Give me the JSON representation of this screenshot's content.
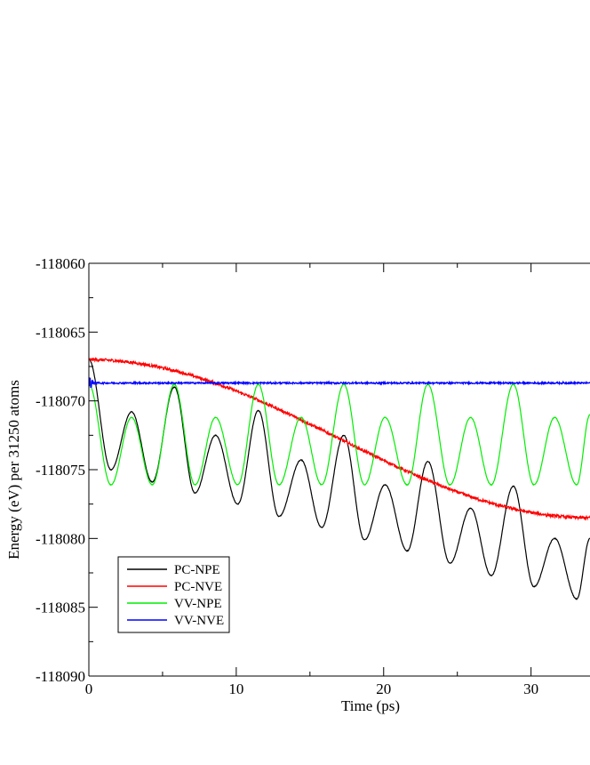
{
  "chart_data": {
    "type": "line",
    "title": "",
    "xlabel": "Time (ps)",
    "ylabel": "Energy (eV) per 31250 atoms",
    "xlim": [
      0,
      34
    ],
    "ylim": [
      -118090,
      -118060
    ],
    "x_major_ticks": [
      0,
      10,
      20,
      30
    ],
    "x_tick_labels": [
      "0",
      "10",
      "20",
      "30"
    ],
    "y_major_ticks": [
      -118090,
      -118085,
      -118080,
      -118075,
      -118070,
      -118065,
      -118060
    ],
    "y_tick_labels": [
      "-118090",
      "-118085",
      "-118080",
      "-118075",
      "-118070",
      "-118065",
      "-118060"
    ],
    "grid": false,
    "legend_position": "bottom-left",
    "series": [
      {
        "name": "PC-NPE",
        "color": "#000000",
        "model": "damped-oscillation",
        "x": [
          0,
          1.5,
          2.9,
          4.3,
          5.8,
          7.2,
          8.6,
          10.1,
          11.5,
          12.9,
          14.4,
          15.8,
          17.3,
          18.7,
          20.1,
          21.6,
          23.0,
          24.5,
          25.9,
          27.3,
          28.8,
          30.2,
          31.6,
          33.1,
          34
        ],
        "y": [
          -118067.0,
          -118075.0,
          -118070.8,
          -118075.9,
          -118069.0,
          -118076.7,
          -118072.5,
          -118077.5,
          -118070.7,
          -118078.4,
          -118074.3,
          -118079.2,
          -118072.5,
          -118080.1,
          -118076.1,
          -118080.9,
          -118074.4,
          -118081.8,
          -118077.8,
          -118082.7,
          -118076.2,
          -118083.5,
          -118080.0,
          -118084.4,
          -118080.0
        ]
      },
      {
        "name": "PC-NVE",
        "color": "#ff0000",
        "model": "linear-with-noise",
        "x": [
          0,
          34
        ],
        "y": [
          -118067.0,
          -118078.5
        ]
      },
      {
        "name": "VV-NPE",
        "color": "#00ee00",
        "model": "oscillation",
        "x": [
          0,
          1.5,
          2.9,
          4.3,
          5.8,
          7.2,
          8.6,
          10.1,
          11.5,
          12.9,
          14.4,
          15.8,
          17.3,
          18.7,
          20.1,
          21.6,
          23.0,
          24.5,
          25.9,
          27.3,
          28.8,
          30.2,
          31.6,
          33.1,
          34
        ],
        "y": [
          -118068.8,
          -118076.1,
          -118071.2,
          -118076.1,
          -118068.8,
          -118076.1,
          -118071.2,
          -118076.1,
          -118068.8,
          -118076.1,
          -118071.2,
          -118076.1,
          -118068.8,
          -118076.1,
          -118071.2,
          -118076.1,
          -118068.8,
          -118076.1,
          -118071.2,
          -118076.1,
          -118068.8,
          -118076.1,
          -118071.2,
          -118076.1,
          -118071.0
        ]
      },
      {
        "name": "VV-NVE",
        "color": "#0000ff",
        "model": "flat-with-noise",
        "x": [
          0,
          34
        ],
        "y": [
          -118068.7,
          -118068.7
        ]
      }
    ]
  }
}
